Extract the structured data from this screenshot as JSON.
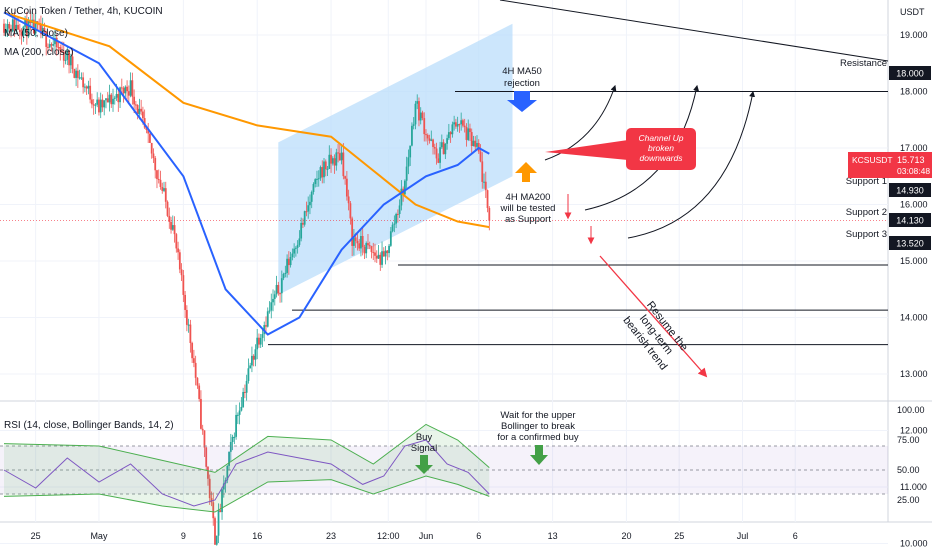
{
  "header": {
    "title": "KuCoin Token / Tether, 4h, KUCOIN",
    "ma50": "MA (50, close)",
    "ma200": "MA (200, close)",
    "rsi": "RSI (14, close, Bollinger Bands, 14, 2)"
  },
  "price_axis": {
    "currency": "USDT",
    "ticks": [
      "19.000",
      "18.000",
      "17.000",
      "16.000",
      "15.000",
      "14.000",
      "13.000",
      "12.000",
      "11.000",
      "10.000"
    ],
    "ticker": "KCSUSDT",
    "last_price": "15.713",
    "countdown": "03:08:48",
    "level_resistance": "18.000",
    "level_s1": "14.930",
    "level_s2": "14.130",
    "level_s3": "13.520"
  },
  "rsi_axis": {
    "ticks": [
      "100.00",
      "75.00",
      "50.00",
      "25.00"
    ]
  },
  "time_axis": {
    "ticks": [
      "25",
      "May",
      "9",
      "16",
      "23",
      "12:00",
      "Jun",
      "6",
      "13",
      "20",
      "25",
      "Jul",
      "6"
    ]
  },
  "annotations": {
    "resistance": "Resistance",
    "support1": "Support 1",
    "support2": "Support 2",
    "support3": "Support 3",
    "ma50_rejection_1": "4H MA50",
    "ma50_rejection_2": "rejection",
    "ma200_test_1": "4H MA200",
    "ma200_test_2": "will be tested",
    "ma200_test_3": "as Support",
    "channel_1": "Channel Up",
    "channel_2": "broken",
    "channel_3": "downwards",
    "trend_1": "Resume the",
    "trend_2": "long-term",
    "trend_3": "bearish trend",
    "buy_1": "Buy",
    "buy_2": "Signal",
    "wait_1": "Wait for the upper",
    "wait_2": "Bollinger to break",
    "wait_3": "for a confirmed buy"
  },
  "colors": {
    "up": "#26a69a",
    "down": "#ef5350",
    "ma50": "#2962ff",
    "ma200": "#ff9800",
    "channel": "#bbdefb",
    "rsi_line": "#7e57c2",
    "bollinger": "#4caf50",
    "callout": "#f23645"
  },
  "chart_data": [
    {
      "type": "candlestick",
      "title": "KuCoin Token / Tether, 4h, KUCOIN",
      "ylabel": "USDT",
      "ylim": [
        9.5,
        19.5
      ],
      "price_path": [
        [
          "Apr 22",
          19.2
        ],
        [
          "Apr 25",
          19.1
        ],
        [
          "Apr 28",
          18.6
        ],
        [
          "May 1",
          17.7
        ],
        [
          "May 4",
          18.1
        ],
        [
          "May 6",
          16.9
        ],
        [
          "May 8",
          15.6
        ],
        [
          "May 10",
          13.2
        ],
        [
          "May 12",
          10.1
        ],
        [
          "May 14",
          12.2
        ],
        [
          "May 16",
          13.6
        ],
        [
          "May 18",
          14.5
        ],
        [
          "May 20",
          15.5
        ],
        [
          "May 22",
          16.6
        ],
        [
          "May 24",
          16.9
        ],
        [
          "May 25",
          15.4
        ],
        [
          "May 28",
          15.0
        ],
        [
          "May 30",
          16.4
        ],
        [
          "May 31",
          17.8
        ],
        [
          "Jun 2",
          16.8
        ],
        [
          "Jun 4",
          17.5
        ],
        [
          "Jun 6",
          16.9
        ],
        [
          "Jun 7",
          15.713
        ]
      ],
      "last_price": 15.713,
      "ma50_path": [
        [
          "Apr 22",
          19.4
        ],
        [
          "May 1",
          18.5
        ],
        [
          "May 9",
          16.5
        ],
        [
          "May 13",
          14.5
        ],
        [
          "May 17",
          13.7
        ],
        [
          "May 20",
          14.0
        ],
        [
          "May 24",
          15.2
        ],
        [
          "May 28",
          16.0
        ],
        [
          "Jun 1",
          16.5
        ],
        [
          "Jun 4",
          16.7
        ],
        [
          "Jun 6",
          17.0
        ],
        [
          "Jun 7",
          16.9
        ]
      ],
      "ma200_path": [
        [
          "Apr 22",
          19.4
        ],
        [
          "May 2",
          18.8
        ],
        [
          "May 9",
          17.8
        ],
        [
          "May 16",
          17.4
        ],
        [
          "May 23",
          17.2
        ],
        [
          "May 27",
          16.6
        ],
        [
          "May 31",
          16.0
        ],
        [
          "Jun 4",
          15.7
        ],
        [
          "Jun 7",
          15.6
        ]
      ],
      "levels": [
        {
          "label": "Resistance",
          "value": 18.0
        },
        {
          "label": "Support 1",
          "value": 14.93
        },
        {
          "label": "Support 2",
          "value": 14.13
        },
        {
          "label": "Support 3",
          "value": 13.52
        }
      ]
    },
    {
      "type": "line",
      "title": "RSI (14, close, Bollinger Bands, 14, 2)",
      "ylim": [
        15,
        100
      ],
      "guides": [
        70,
        50,
        30
      ],
      "rsi_path": [
        [
          "Apr 22",
          50
        ],
        [
          "Apr 25",
          35
        ],
        [
          "Apr 28",
          60
        ],
        [
          "May 1",
          40
        ],
        [
          "May 4",
          55
        ],
        [
          "May 7",
          30
        ],
        [
          "May 10",
          20
        ],
        [
          "May 12",
          25
        ],
        [
          "May 14",
          55
        ],
        [
          "May 17",
          65
        ],
        [
          "May 20",
          60
        ],
        [
          "May 23",
          55
        ],
        [
          "May 26",
          38
        ],
        [
          "May 28",
          45
        ],
        [
          "May 30",
          70
        ],
        [
          "Jun 1",
          75
        ],
        [
          "Jun 3",
          55
        ],
        [
          "Jun 5",
          48
        ],
        [
          "Jun 7",
          30
        ]
      ],
      "upper_band_path": [
        [
          "Apr 22",
          72
        ],
        [
          "May 1",
          70
        ],
        [
          "May 7",
          58
        ],
        [
          "May 12",
          48
        ],
        [
          "May 17",
          78
        ],
        [
          "May 23",
          75
        ],
        [
          "May 27",
          55
        ],
        [
          "Jun 1",
          88
        ],
        [
          "Jun 4",
          75
        ],
        [
          "Jun 7",
          52
        ]
      ],
      "lower_band_path": [
        [
          "Apr 22",
          28
        ],
        [
          "May 1",
          30
        ],
        [
          "May 7",
          20
        ],
        [
          "May 12",
          15
        ],
        [
          "May 17",
          40
        ],
        [
          "May 23",
          42
        ],
        [
          "May 27",
          30
        ],
        [
          "Jun 1",
          45
        ],
        [
          "Jun 4",
          38
        ],
        [
          "Jun 7",
          28
        ]
      ]
    }
  ]
}
